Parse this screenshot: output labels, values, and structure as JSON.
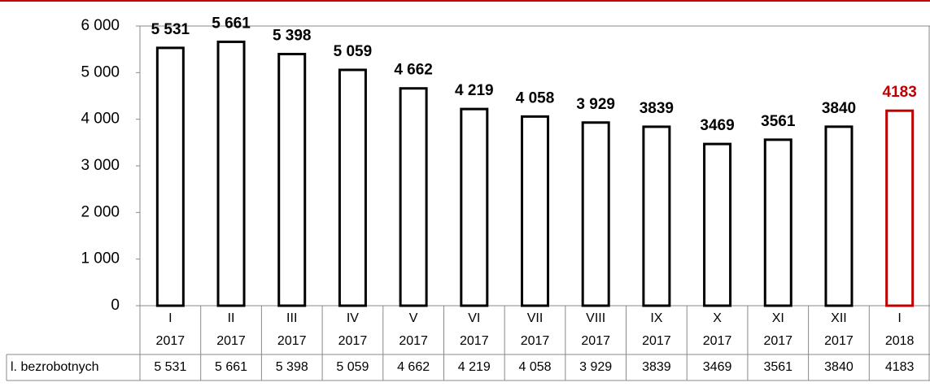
{
  "chart_data": {
    "type": "bar",
    "categories": [
      [
        "I",
        "2017"
      ],
      [
        "II",
        "2017"
      ],
      [
        "III",
        "2017"
      ],
      [
        "IV",
        "2017"
      ],
      [
        "V",
        "2017"
      ],
      [
        "VI",
        "2017"
      ],
      [
        "VII",
        "2017"
      ],
      [
        "VIII",
        "2017"
      ],
      [
        "IX",
        "2017"
      ],
      [
        "X",
        "2017"
      ],
      [
        "XI",
        "2017"
      ],
      [
        "XII",
        "2017"
      ],
      [
        "I",
        "2018"
      ]
    ],
    "series": [
      {
        "name": "l. bezrobotnych",
        "values": [
          5531,
          5661,
          5398,
          5059,
          4662,
          4219,
          4058,
          3929,
          3839,
          3469,
          3561,
          3840,
          4183
        ],
        "value_labels": [
          "5 531",
          "5 661",
          "5 398",
          "5 059",
          "4 662",
          "4 219",
          "4 058",
          "3 929",
          "3839",
          "3469",
          "3561",
          "3840",
          "4183"
        ],
        "colors": [
          "#000000",
          "#000000",
          "#000000",
          "#000000",
          "#000000",
          "#000000",
          "#000000",
          "#000000",
          "#000000",
          "#000000",
          "#000000",
          "#000000",
          "#c00000"
        ]
      }
    ],
    "ylim": [
      0,
      6000
    ],
    "yticks": [
      0,
      {
        "value": 1000,
        "label": "1 000"
      },
      {
        "value": 2000,
        "label": "2 000"
      },
      {
        "value": 3000,
        "label": "3 000"
      },
      {
        "value": 4000,
        "label": "4 000"
      },
      {
        "value": 5000,
        "label": "5 000"
      },
      {
        "value": 6000,
        "label": "6 000"
      }
    ],
    "grid": false
  }
}
